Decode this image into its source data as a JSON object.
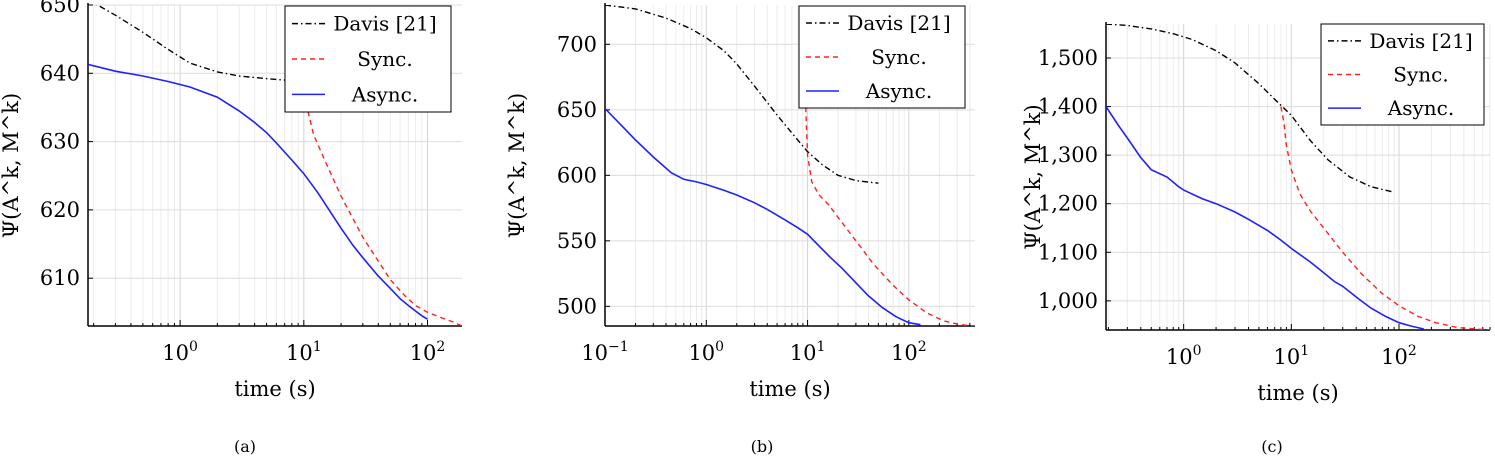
{
  "chart_data": [
    {
      "type": "line",
      "caption": "(a)",
      "xlabel": "time (s)",
      "ylabel": "Ψ(A^k, M^k)",
      "xscale": "log",
      "xlim": [
        0.18,
        190
      ],
      "ylim": [
        603,
        650
      ],
      "xticks": [
        {
          "value": 1,
          "base": "10",
          "exp": "0"
        },
        {
          "value": 10,
          "base": "10",
          "exp": "1"
        },
        {
          "value": 100,
          "base": "10",
          "exp": "2"
        }
      ],
      "yticks": [
        {
          "value": 610,
          "label": "610"
        },
        {
          "value": 620,
          "label": "620"
        },
        {
          "value": 630,
          "label": "630"
        },
        {
          "value": 640,
          "label": "640"
        },
        {
          "value": 650,
          "label": "650"
        }
      ],
      "grid": true,
      "legend_position": "top-right",
      "series": [
        {
          "name": "Davis [21]",
          "color": "#000000",
          "style": "dashdot",
          "x": [
            0.18,
            0.3,
            0.5,
            0.8,
            1.2,
            2,
            3,
            4.5,
            7
          ],
          "y": [
            650.8,
            648.5,
            646,
            643.5,
            641.5,
            640.2,
            639.6,
            639.3,
            639
          ]
        },
        {
          "name": "Sync.",
          "color": "#ff2020",
          "style": "dashed",
          "x": [
            10,
            12,
            15,
            20,
            30,
            40,
            50,
            65,
            80,
            100,
            130,
            160,
            190
          ],
          "y": [
            637,
            631,
            627,
            622,
            616,
            612.5,
            609.8,
            607.5,
            606,
            605,
            604.2,
            603.6,
            603
          ]
        },
        {
          "name": "Async.",
          "color": "#2020ff",
          "style": "solid",
          "x": [
            0.18,
            0.3,
            0.5,
            0.8,
            1.2,
            2,
            3,
            4,
            5,
            6,
            8,
            10,
            13,
            16,
            20,
            25,
            30,
            40,
            50,
            60,
            70,
            80,
            90,
            100
          ],
          "y": [
            641.3,
            640.3,
            639.6,
            638.8,
            638,
            636.5,
            634.5,
            632.8,
            631.3,
            629.8,
            627.3,
            625.3,
            622.5,
            620,
            617.3,
            614.8,
            613,
            610.3,
            608.5,
            607,
            606,
            605.2,
            604.5,
            604
          ]
        }
      ]
    },
    {
      "type": "line",
      "caption": "(b)",
      "xlabel": "time (s)",
      "ylabel": "Ψ(A^k, M^k)",
      "xscale": "log",
      "xlim": [
        0.1,
        450
      ],
      "ylim": [
        485,
        730
      ],
      "xticks": [
        {
          "value": 0.1,
          "base": "10",
          "exp": "−1"
        },
        {
          "value": 1,
          "base": "10",
          "exp": "0"
        },
        {
          "value": 10,
          "base": "10",
          "exp": "1"
        },
        {
          "value": 100,
          "base": "10",
          "exp": "2"
        }
      ],
      "yticks": [
        {
          "value": 500,
          "label": "500"
        },
        {
          "value": 550,
          "label": "550"
        },
        {
          "value": 600,
          "label": "600"
        },
        {
          "value": 650,
          "label": "650"
        },
        {
          "value": 700,
          "label": "700"
        }
      ],
      "grid": true,
      "legend_position": "top-right",
      "series": [
        {
          "name": "Davis [21]",
          "color": "#000000",
          "style": "dashdot",
          "x": [
            0.1,
            0.2,
            0.4,
            0.7,
            1,
            1.5,
            2,
            3,
            5,
            8,
            10,
            14,
            20,
            30,
            50
          ],
          "y": [
            730,
            727,
            720,
            712,
            705,
            695,
            685,
            668,
            646,
            627,
            618,
            608,
            600,
            596,
            594
          ]
        },
        {
          "name": "Sync.",
          "color": "#ff2020",
          "style": "dashed",
          "x": [
            9,
            9.5,
            10,
            11,
            13,
            16,
            20,
            30,
            45,
            70,
            100,
            150,
            220,
            320,
            450
          ],
          "y": [
            700,
            660,
            615,
            595,
            585,
            578,
            568,
            550,
            532,
            516,
            505,
            495,
            489,
            486,
            485
          ]
        },
        {
          "name": "Async.",
          "color": "#2020ff",
          "style": "solid",
          "x": [
            0.1,
            0.15,
            0.2,
            0.3,
            0.45,
            0.6,
            0.8,
            1,
            1.5,
            2,
            3,
            4,
            6,
            8,
            10,
            13,
            17,
            22,
            30,
            40,
            55,
            75,
            100,
            130
          ],
          "y": [
            651,
            637,
            627,
            614,
            602,
            597,
            595,
            593,
            588.5,
            585,
            579,
            574,
            566,
            560,
            555,
            546,
            537,
            529,
            518,
            508,
            499,
            492,
            487.5,
            486
          ]
        }
      ]
    },
    {
      "type": "line",
      "caption": "(c)",
      "xlabel": "time (s)",
      "ylabel": "Ψ(A^k, M^k)",
      "xscale": "log",
      "xlim": [
        0.19,
        700
      ],
      "ylim": [
        940,
        1570
      ],
      "xticks": [
        {
          "value": 1,
          "base": "10",
          "exp": "0"
        },
        {
          "value": 10,
          "base": "10",
          "exp": "1"
        },
        {
          "value": 100,
          "base": "10",
          "exp": "2"
        }
      ],
      "yticks": [
        {
          "value": 1000,
          "label": "1,000"
        },
        {
          "value": 1100,
          "label": "1,100"
        },
        {
          "value": 1200,
          "label": "1,200"
        },
        {
          "value": 1300,
          "label": "1,300"
        },
        {
          "value": 1400,
          "label": "1,400"
        },
        {
          "value": 1500,
          "label": "1,500"
        }
      ],
      "grid": true,
      "legend_position": "top-right",
      "series": [
        {
          "name": "Davis [21]",
          "color": "#000000",
          "style": "dashdot",
          "x": [
            0.19,
            0.3,
            0.5,
            0.8,
            1.2,
            2,
            3,
            5,
            7,
            10,
            15,
            22,
            35,
            55,
            85
          ],
          "y": [
            1570,
            1567,
            1560,
            1550,
            1538,
            1515,
            1490,
            1447,
            1415,
            1382,
            1330,
            1290,
            1255,
            1235,
            1225
          ]
        },
        {
          "name": "Sync.",
          "color": "#ff2020",
          "style": "dashed",
          "x": [
            8,
            8.5,
            9,
            10,
            12,
            15,
            20,
            30,
            45,
            70,
            100,
            150,
            220,
            350,
            700
          ],
          "y": [
            1400,
            1370,
            1320,
            1270,
            1220,
            1185,
            1150,
            1100,
            1055,
            1015,
            990,
            968,
            955,
            945,
            940
          ]
        },
        {
          "name": "Async.",
          "color": "#2020ff",
          "style": "solid",
          "x": [
            0.19,
            0.25,
            0.3,
            0.4,
            0.5,
            0.7,
            0.9,
            1,
            1.5,
            2,
            3,
            4,
            6,
            8,
            10,
            15,
            20,
            25,
            30,
            40,
            55,
            75,
            100,
            130,
            170
          ],
          "y": [
            1400,
            1360,
            1335,
            1295,
            1270,
            1255,
            1235,
            1228,
            1210,
            1200,
            1183,
            1168,
            1145,
            1125,
            1108,
            1080,
            1058,
            1040,
            1030,
            1008,
            985,
            968,
            955,
            948,
            942
          ]
        }
      ]
    }
  ]
}
